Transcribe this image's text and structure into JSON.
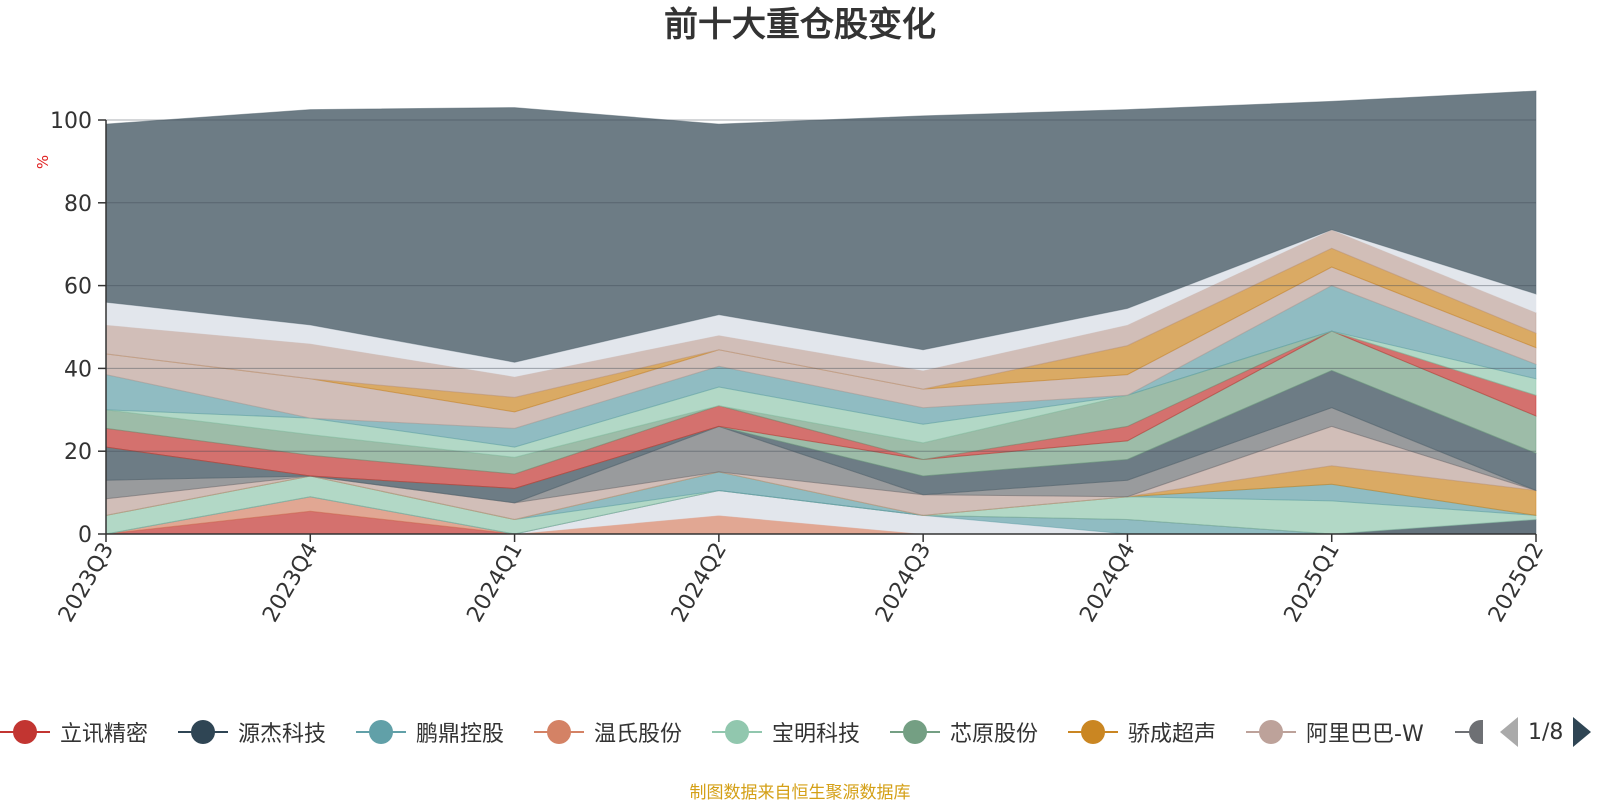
{
  "title": "前十大重仓股变化",
  "source_note": "制图数据来自恒生聚源数据库",
  "pager": {
    "text": "1/8"
  },
  "chart_data": {
    "type": "area",
    "stacked": true,
    "title": "前十大重仓股变化",
    "ylabel": "%",
    "xlabel": "",
    "ylim": [
      0,
      100
    ],
    "yticks": [
      0,
      20,
      40,
      60,
      80,
      100
    ],
    "grid": true,
    "legend_position": "bottom",
    "categories": [
      "2023Q3",
      "2023Q4",
      "2024Q1",
      "2024Q2",
      "2024Q3",
      "2024Q4",
      "2025Q1",
      "2025Q2"
    ],
    "legend": [
      {
        "name": "立讯精密",
        "color": "#c23531"
      },
      {
        "name": "源杰科技",
        "color": "#2f4554"
      },
      {
        "name": "鹏鼎控股",
        "color": "#61a0a8"
      },
      {
        "name": "温氏股份",
        "color": "#d48265"
      },
      {
        "name": "宝明科技",
        "color": "#91c7ae"
      },
      {
        "name": "芯原股份",
        "color": "#749f83"
      },
      {
        "name": "骄成超声",
        "color": "#ca8622"
      },
      {
        "name": "阿里巴巴-W",
        "color": "#bda29a"
      },
      {
        "name": "",
        "color": "#6e7074"
      }
    ],
    "layers": [
      {
        "values": [
          0,
          5.5,
          0,
          0,
          0,
          0,
          0,
          0
        ],
        "color": "#c23531",
        "opacity": 0.7
      },
      {
        "values": [
          0,
          3.5,
          0,
          4.5,
          0,
          0,
          0,
          0
        ],
        "color": "#d48265",
        "opacity": 0.7
      },
      {
        "values": [
          0,
          0,
          0,
          6,
          4.5,
          0,
          0,
          0
        ],
        "color": "#e2e6ec",
        "opacity": 1.0
      },
      {
        "values": [
          0,
          0,
          0,
          0,
          0,
          3.5,
          0,
          0
        ],
        "color": "#61a0a8",
        "opacity": 0.7
      },
      {
        "values": [
          0,
          0,
          0,
          0,
          0,
          0,
          0,
          3.5
        ],
        "color": "#546570",
        "opacity": 0.9
      },
      {
        "values": [
          4.5,
          5,
          3.5,
          0,
          0,
          5.5,
          8,
          1
        ],
        "color": "#91c7ae",
        "opacity": 0.7
      },
      {
        "values": [
          0,
          0,
          0,
          4.5,
          0,
          0,
          4,
          0
        ],
        "color": "#61a0a8",
        "opacity": 0.7
      },
      {
        "values": [
          0,
          0,
          0,
          0,
          0,
          0,
          4.5,
          6
        ],
        "color": "#ca8622",
        "opacity": 0.7
      },
      {
        "values": [
          4,
          0,
          4,
          0,
          5,
          0,
          9.5,
          0
        ],
        "color": "#bda29a",
        "opacity": 0.7
      },
      {
        "values": [
          4.5,
          0,
          0,
          11,
          0,
          4,
          4.5,
          0
        ],
        "color": "#6e7074",
        "opacity": 0.7
      },
      {
        "values": [
          8,
          0,
          3.5,
          0,
          4.5,
          5,
          9,
          9
        ],
        "color": "#546570",
        "opacity": 0.85
      },
      {
        "values": [
          0,
          0,
          0,
          0,
          4,
          4.5,
          9.5,
          9
        ],
        "color": "#749f83",
        "opacity": 0.7
      },
      {
        "values": [
          4.5,
          5,
          3.5,
          5,
          0,
          3.5,
          0,
          5
        ],
        "color": "#c23531",
        "opacity": 0.7
      },
      {
        "values": [
          4.5,
          5,
          4,
          0,
          4,
          7.5,
          0,
          0
        ],
        "color": "#749f83",
        "opacity": 0.7
      },
      {
        "values": [
          0,
          4,
          2.5,
          4.5,
          4.5,
          0,
          0,
          4
        ],
        "color": "#91c7ae",
        "opacity": 0.7
      },
      {
        "values": [
          8.5,
          0,
          4.5,
          5,
          4,
          0,
          11,
          3.5
        ],
        "color": "#61a0a8",
        "opacity": 0.7
      },
      {
        "values": [
          5,
          9.5,
          4,
          4,
          4.5,
          5,
          4.5,
          4
        ],
        "color": "#bda29a",
        "opacity": 0.7
      },
      {
        "values": [
          0,
          0,
          3.5,
          0,
          0,
          7,
          4.5,
          3.5
        ],
        "color": "#ca8622",
        "opacity": 0.7
      },
      {
        "values": [
          7,
          8.5,
          5,
          3.5,
          4.5,
          5,
          4.5,
          5
        ],
        "color": "#bda29a",
        "opacity": 0.7
      },
      {
        "values": [
          5.5,
          4.5,
          3.5,
          5,
          5,
          4,
          0,
          4.5
        ],
        "color": "#e2e6ec",
        "opacity": 1.0
      },
      {
        "values": [
          43,
          52,
          61.5,
          46,
          56.5,
          48,
          31,
          49
        ],
        "color": "#546570",
        "opacity": 0.85
      }
    ]
  }
}
